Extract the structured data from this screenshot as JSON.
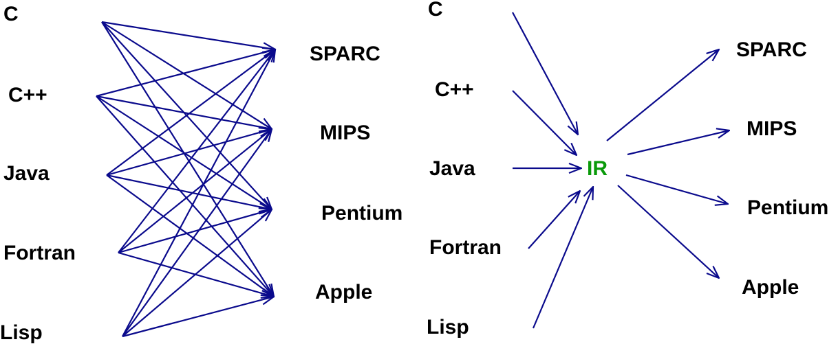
{
  "left": {
    "sources": [
      "C",
      "C++",
      "Java",
      "Fortran",
      "Lisp"
    ],
    "targets": [
      "SPARC",
      "MIPS",
      "Pentium",
      "Apple"
    ]
  },
  "right": {
    "sources": [
      "C",
      "C++",
      "Java",
      "Fortran",
      "Lisp"
    ],
    "center": "IR",
    "targets": [
      "SPARC",
      "MIPS",
      "Pentium",
      "Apple"
    ]
  }
}
